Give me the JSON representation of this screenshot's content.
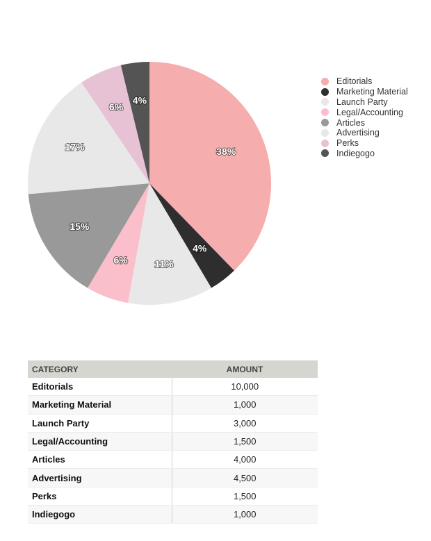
{
  "chart_data": {
    "type": "pie",
    "categories": [
      "Editorials",
      "Marketing Material",
      "Launch Party",
      "Legal/Accounting",
      "Articles",
      "Advertising",
      "Perks",
      "Indiegogo"
    ],
    "values": [
      10000,
      1000,
      3000,
      1500,
      4000,
      4500,
      1500,
      1000
    ],
    "labels": [
      "38%",
      "4%",
      "11%",
      "6%",
      "15%",
      "17%",
      "6%",
      "4%"
    ],
    "colors": [
      "#f5adad",
      "#2e2e2e",
      "#e8e8e8",
      "#fbbfcb",
      "#999999",
      "#e8e8e8",
      "#e7c2d5",
      "#545454"
    ],
    "legend_colors": [
      "#f5adad",
      "#2e2e2e",
      "#e8e8e8",
      "#fbbfcb",
      "#999999",
      "#e8e8e8",
      "#e7c2d5",
      "#545454"
    ],
    "legend_position": "right",
    "start_angle": "12 o'clock",
    "direction": "clockwise"
  },
  "table": {
    "headers": {
      "category": "CATEGORY",
      "amount": "AMOUNT"
    },
    "rows": [
      {
        "category": "Editorials",
        "amount": "10,000"
      },
      {
        "category": "Marketing Material",
        "amount": "1,000"
      },
      {
        "category": "Launch Party",
        "amount": "3,000"
      },
      {
        "category": "Legal/Accounting",
        "amount": "1,500"
      },
      {
        "category": "Articles",
        "amount": "4,000"
      },
      {
        "category": "Advertising",
        "amount": "4,500"
      },
      {
        "category": "Perks",
        "amount": "1,500"
      },
      {
        "category": "Indiegogo",
        "amount": "1,000"
      }
    ]
  }
}
